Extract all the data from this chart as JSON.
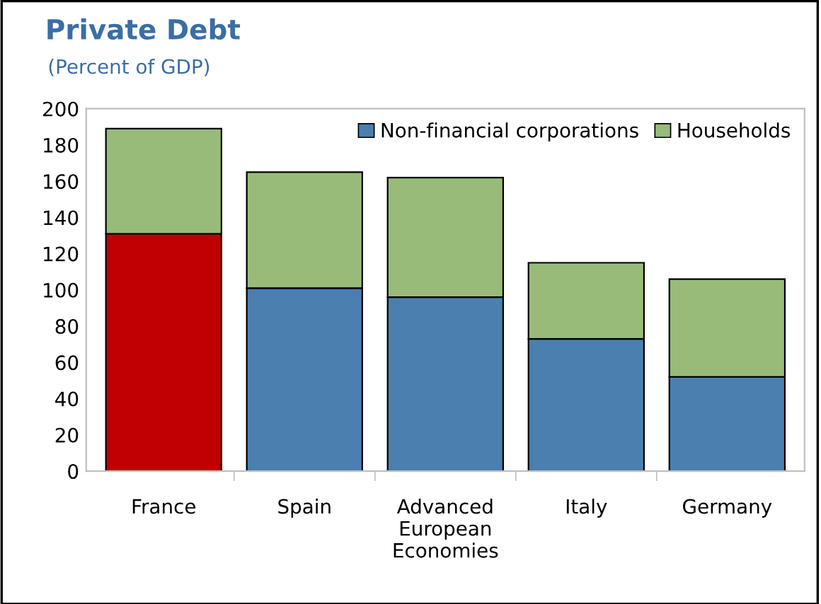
{
  "chart_data": {
    "type": "bar",
    "title": "Private Debt",
    "subtitle": "(Percent of GDP)",
    "categories": [
      "France",
      "Spain",
      "Advanced\nEuropean\nEconomies",
      "Italy",
      "Germany"
    ],
    "stacked": true,
    "series": [
      {
        "name": "Non-financial corporations",
        "color": "#4a7fb0",
        "colors": [
          "#c00000",
          "#4a7fb0",
          "#4a7fb0",
          "#4a7fb0",
          "#4a7fb0"
        ],
        "values": [
          131,
          101,
          96,
          73,
          52
        ]
      },
      {
        "name": "Households",
        "color": "#98bb7a",
        "values": [
          58,
          64,
          66,
          42,
          54
        ]
      }
    ],
    "ylim": [
      0,
      200
    ],
    "yticks": [
      0,
      20,
      40,
      60,
      80,
      100,
      120,
      140,
      160,
      180,
      200
    ],
    "grid": false,
    "legend": "top right"
  }
}
